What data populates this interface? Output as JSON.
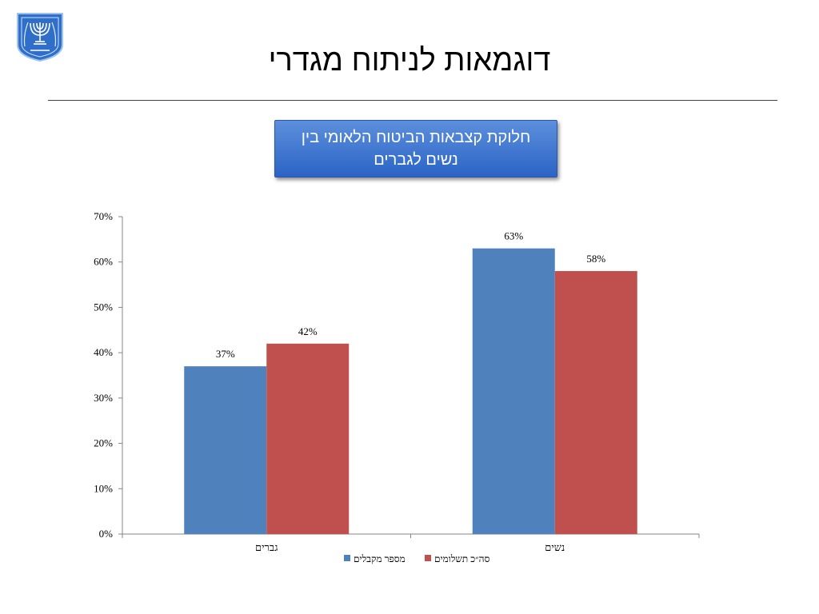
{
  "slide": {
    "title": "דוגמאות לניתוח מגדרי",
    "callout": "חלוקת קצבאות הביטוח הלאומי בין נשים לגברים"
  },
  "colors": {
    "series_1": "#4f81bd",
    "series_2": "#c0504d",
    "callout_top": "#5c8fdb",
    "callout_bottom": "#2b64c6"
  },
  "chart_data": {
    "type": "bar",
    "title": "",
    "xlabel": "",
    "ylabel": "",
    "categories": [
      "גברים",
      "נשים"
    ],
    "series": [
      {
        "name": "מספר מקבלים",
        "values": [
          37,
          63
        ],
        "labels": [
          "37%",
          "63%"
        ]
      },
      {
        "name": "סה״כ תשלומים",
        "values": [
          42,
          58
        ],
        "labels": [
          "42%",
          "58%"
        ]
      }
    ],
    "ylim": [
      0,
      70
    ],
    "yticks": [
      "0%",
      "10%",
      "20%",
      "30%",
      "40%",
      "50%",
      "60%",
      "70%"
    ],
    "grid": false,
    "legend": "bottom"
  }
}
